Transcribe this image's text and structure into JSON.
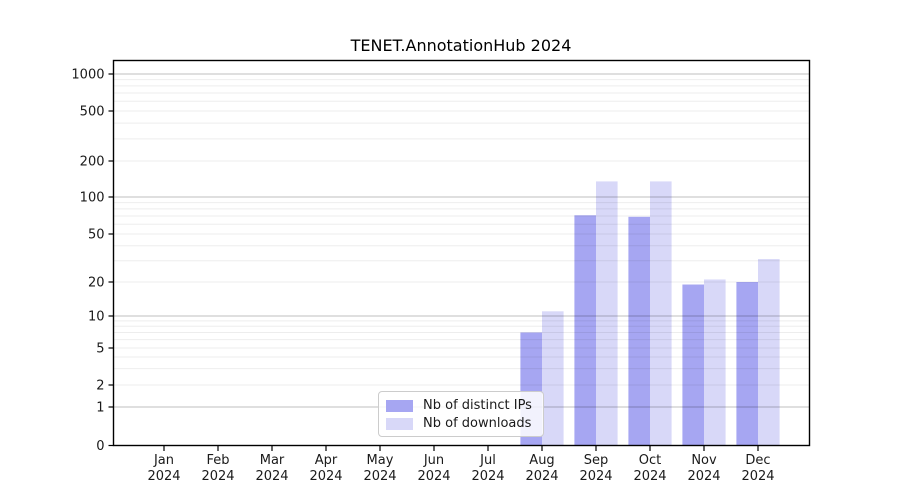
{
  "chart_data": {
    "type": "bar",
    "title": "TENET.AnnotationHub 2024",
    "categories": [
      "Jan",
      "Feb",
      "Mar",
      "Apr",
      "May",
      "Jun",
      "Jul",
      "Aug",
      "Sep",
      "Oct",
      "Nov",
      "Dec"
    ],
    "year_label": "2024",
    "series": [
      {
        "name": "Nb of distinct IPs",
        "color": "#a6a6f2",
        "values": [
          0,
          0,
          0,
          0,
          0,
          0,
          0,
          7,
          71,
          69,
          19,
          20
        ]
      },
      {
        "name": "Nb of downloads",
        "color": "#d8d8f8",
        "values": [
          0,
          0,
          0,
          0,
          0,
          0,
          0,
          11,
          135,
          135,
          21,
          31
        ]
      }
    ],
    "yticks": [
      0,
      1,
      2,
      5,
      10,
      20,
      50,
      100,
      200,
      500,
      1000
    ],
    "yscale": "log-like (0,1,2,5,10,20,50,100,200,500,1000)",
    "ylim": [
      0,
      1400
    ],
    "xlabel": "",
    "ylabel": "",
    "grid": "horizontal major and minor log gridlines",
    "legend_position": "lower center"
  }
}
